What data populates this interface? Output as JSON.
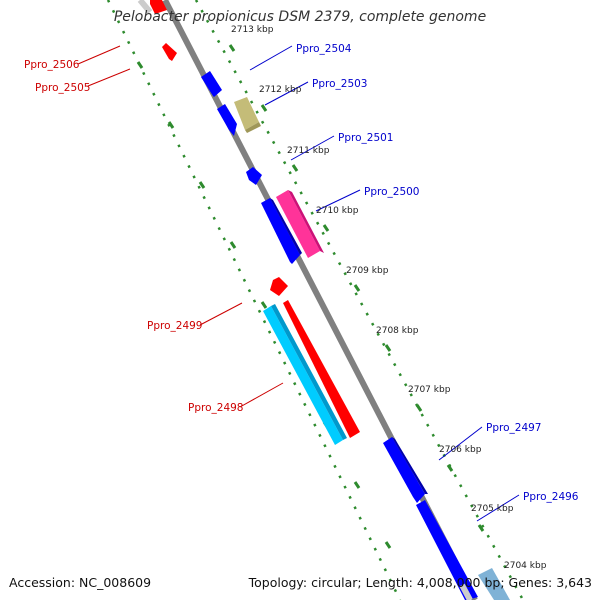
{
  "title": "Pelobacter propionicus DSM 2379, complete genome",
  "footer": {
    "accession": "Accession: NC_008609",
    "summary": "Topology: circular; Length: 4,008,000 bp; Genes: 3,643"
  },
  "kbp_ticks": [
    "2713 kbp",
    "2712 kbp",
    "2711 kbp",
    "2710 kbp",
    "2709 kbp",
    "2708 kbp",
    "2707 kbp",
    "2706 kbp",
    "2705 kbp",
    "2704 kbp"
  ],
  "gene_labels": {
    "forward": [
      "Ppro_2504",
      "Ppro_2503",
      "Ppro_2501",
      "Ppro_2500",
      "Ppro_2497",
      "Ppro_2496"
    ],
    "reverse": [
      "Ppro_2506",
      "Ppro_2505",
      "Ppro_2499",
      "Ppro_2498"
    ]
  },
  "colors": {
    "forward_label": "#0000cc",
    "reverse_label": "#cc0000",
    "backbone": "#808080",
    "tick": "#2e8b2e"
  }
}
